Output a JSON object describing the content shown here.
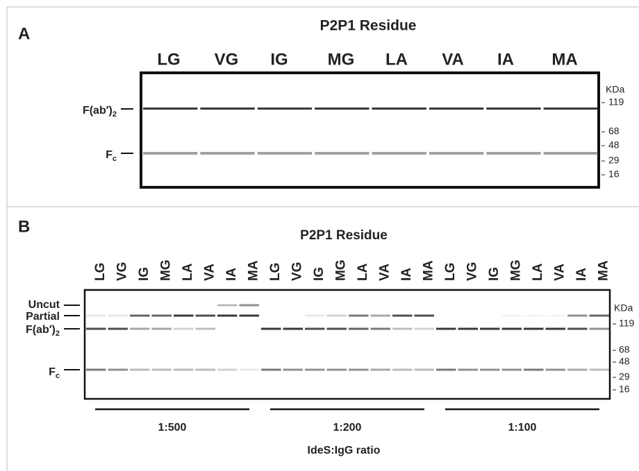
{
  "panel_a": {
    "letter": "A",
    "title": "P2P1 Residue",
    "lanes": [
      "LG",
      "VG",
      "IG",
      "MG",
      "LA",
      "VA",
      "IA",
      "MA"
    ],
    "band_labels": [
      {
        "text": "F(ab′)",
        "sub": "2"
      },
      {
        "text": "F",
        "sub": "c"
      }
    ],
    "marker_unit": "KDa",
    "markers": [
      119,
      68,
      48,
      29,
      16
    ]
  },
  "panel_b": {
    "letter": "B",
    "title": "P2P1 Residue",
    "groups": [
      {
        "ratio": "1:500",
        "lanes": [
          "LG",
          "VG",
          "IG",
          "MG",
          "LA",
          "VA",
          "IA",
          "MA"
        ]
      },
      {
        "ratio": "1:200",
        "lanes": [
          "LG",
          "VG",
          "IG",
          "MG",
          "LA",
          "VA",
          "IA",
          "MA"
        ]
      },
      {
        "ratio": "1:100",
        "lanes": [
          "LG",
          "VG",
          "IG",
          "MG",
          "LA",
          "VA",
          "IA",
          "MA"
        ]
      }
    ],
    "band_labels": [
      {
        "text": "Uncut"
      },
      {
        "text": "Partial"
      },
      {
        "text": "F(ab′)",
        "sub": "2"
      },
      {
        "text": "F",
        "sub": "c"
      }
    ],
    "marker_unit": "KDa",
    "markers": [
      119,
      68,
      48,
      29,
      16
    ],
    "x_label": "IdeS:IgG ratio"
  }
}
